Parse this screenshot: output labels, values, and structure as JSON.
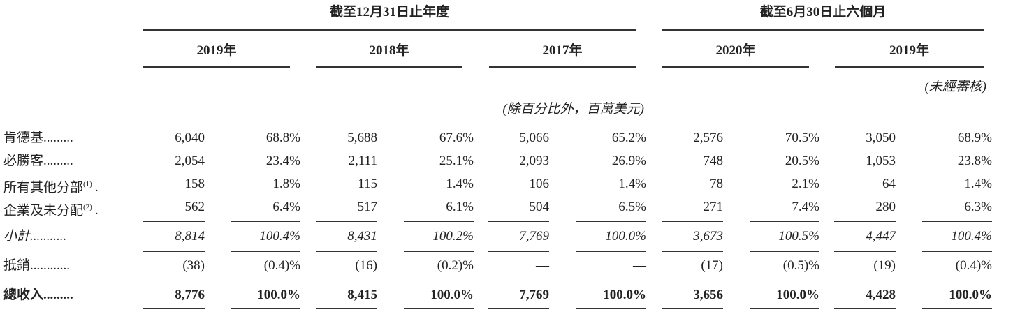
{
  "header": {
    "period_groups": [
      {
        "title": "截至12月31日止年度",
        "years": [
          "2019年",
          "2018年",
          "2017年"
        ]
      },
      {
        "title": "截至6月30日止六個月",
        "years": [
          "2020年",
          "2019年"
        ]
      }
    ],
    "unaudited": "(未經審核)",
    "unit": "(除百分比外，百萬美元)"
  },
  "table": {
    "rows": [
      {
        "label": "肯德基.........",
        "cells": [
          "6,040",
          "68.8%",
          "5,688",
          "67.6%",
          "5,066",
          "65.2%",
          "2,576",
          "70.5%",
          "3,050",
          "68.9%"
        ]
      },
      {
        "label": "必勝客.........",
        "cells": [
          "2,054",
          "23.4%",
          "2,111",
          "25.1%",
          "2,093",
          "26.9%",
          "748",
          "20.5%",
          "1,053",
          "23.8%"
        ]
      },
      {
        "label": "所有其他分部",
        "note": "(1)",
        "trail": ".",
        "cells": [
          "158",
          "1.8%",
          "115",
          "1.4%",
          "106",
          "1.4%",
          "78",
          "2.1%",
          "64",
          "1.4%"
        ]
      },
      {
        "label": "企業及未分配",
        "note": "(2)",
        "trail": ".",
        "cells": [
          "562",
          "6.4%",
          "517",
          "6.1%",
          "504",
          "6.5%",
          "271",
          "7.4%",
          "280",
          "6.3%"
        ]
      },
      {
        "label": "小計...........",
        "cells": [
          "8,814",
          "100.4%",
          "8,431",
          "100.2%",
          "7,769",
          "100.0%",
          "3,673",
          "100.5%",
          "4,447",
          "100.4%"
        ]
      },
      {
        "label": "抵銷............",
        "cells": [
          "(38)",
          "(0.4)%",
          "(16)",
          "(0.2)%",
          "—",
          "—",
          "(17)",
          "(0.5)%",
          "(19)",
          "(0.4)%"
        ]
      },
      {
        "label": "總收入.........",
        "cells": [
          "8,776",
          "100.0%",
          "8,415",
          "100.0%",
          "7,769",
          "100.0%",
          "3,656",
          "100.0%",
          "4,428",
          "100.0%"
        ]
      }
    ]
  }
}
